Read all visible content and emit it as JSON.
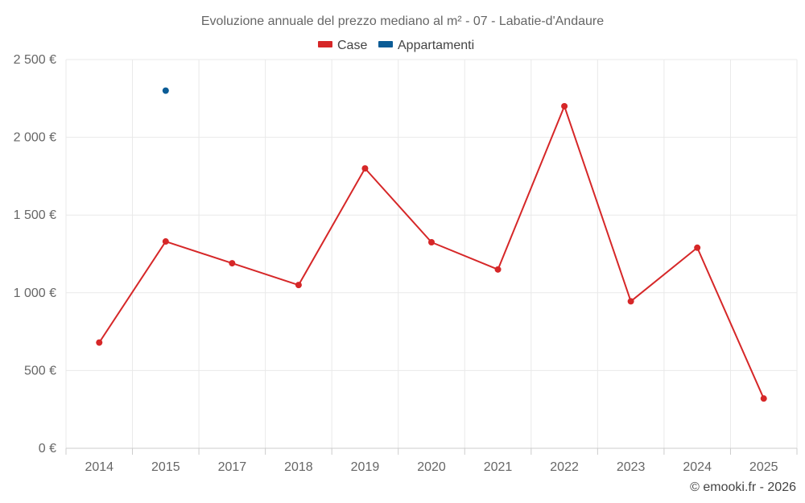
{
  "chart_data": {
    "type": "line",
    "title": "Evoluzione annuale del prezzo mediano al m² - 07 - Labatie-d'Andaure",
    "categories": [
      "2014",
      "2015",
      "2017",
      "2018",
      "2019",
      "2020",
      "2021",
      "2022",
      "2023",
      "2024",
      "2025"
    ],
    "y_ticks": [
      0,
      500,
      1000,
      1500,
      2000,
      2500
    ],
    "y_tick_labels": [
      "0 €",
      "500 €",
      "1 000 €",
      "1 500 €",
      "2 000 €",
      "2 500 €"
    ],
    "ylim": [
      0,
      2500
    ],
    "grid": true,
    "legend_position": "top-center",
    "series": [
      {
        "name": "Case",
        "color": "#d62728",
        "values": [
          680,
          1330,
          1190,
          1050,
          1800,
          1325,
          1150,
          2200,
          945,
          1290,
          320
        ]
      },
      {
        "name": "Appartamenti",
        "color": "#0b5c96",
        "values": [
          null,
          2300,
          null,
          null,
          null,
          null,
          null,
          null,
          null,
          null,
          null
        ]
      }
    ],
    "credit": "© emooki.fr - 2026"
  }
}
